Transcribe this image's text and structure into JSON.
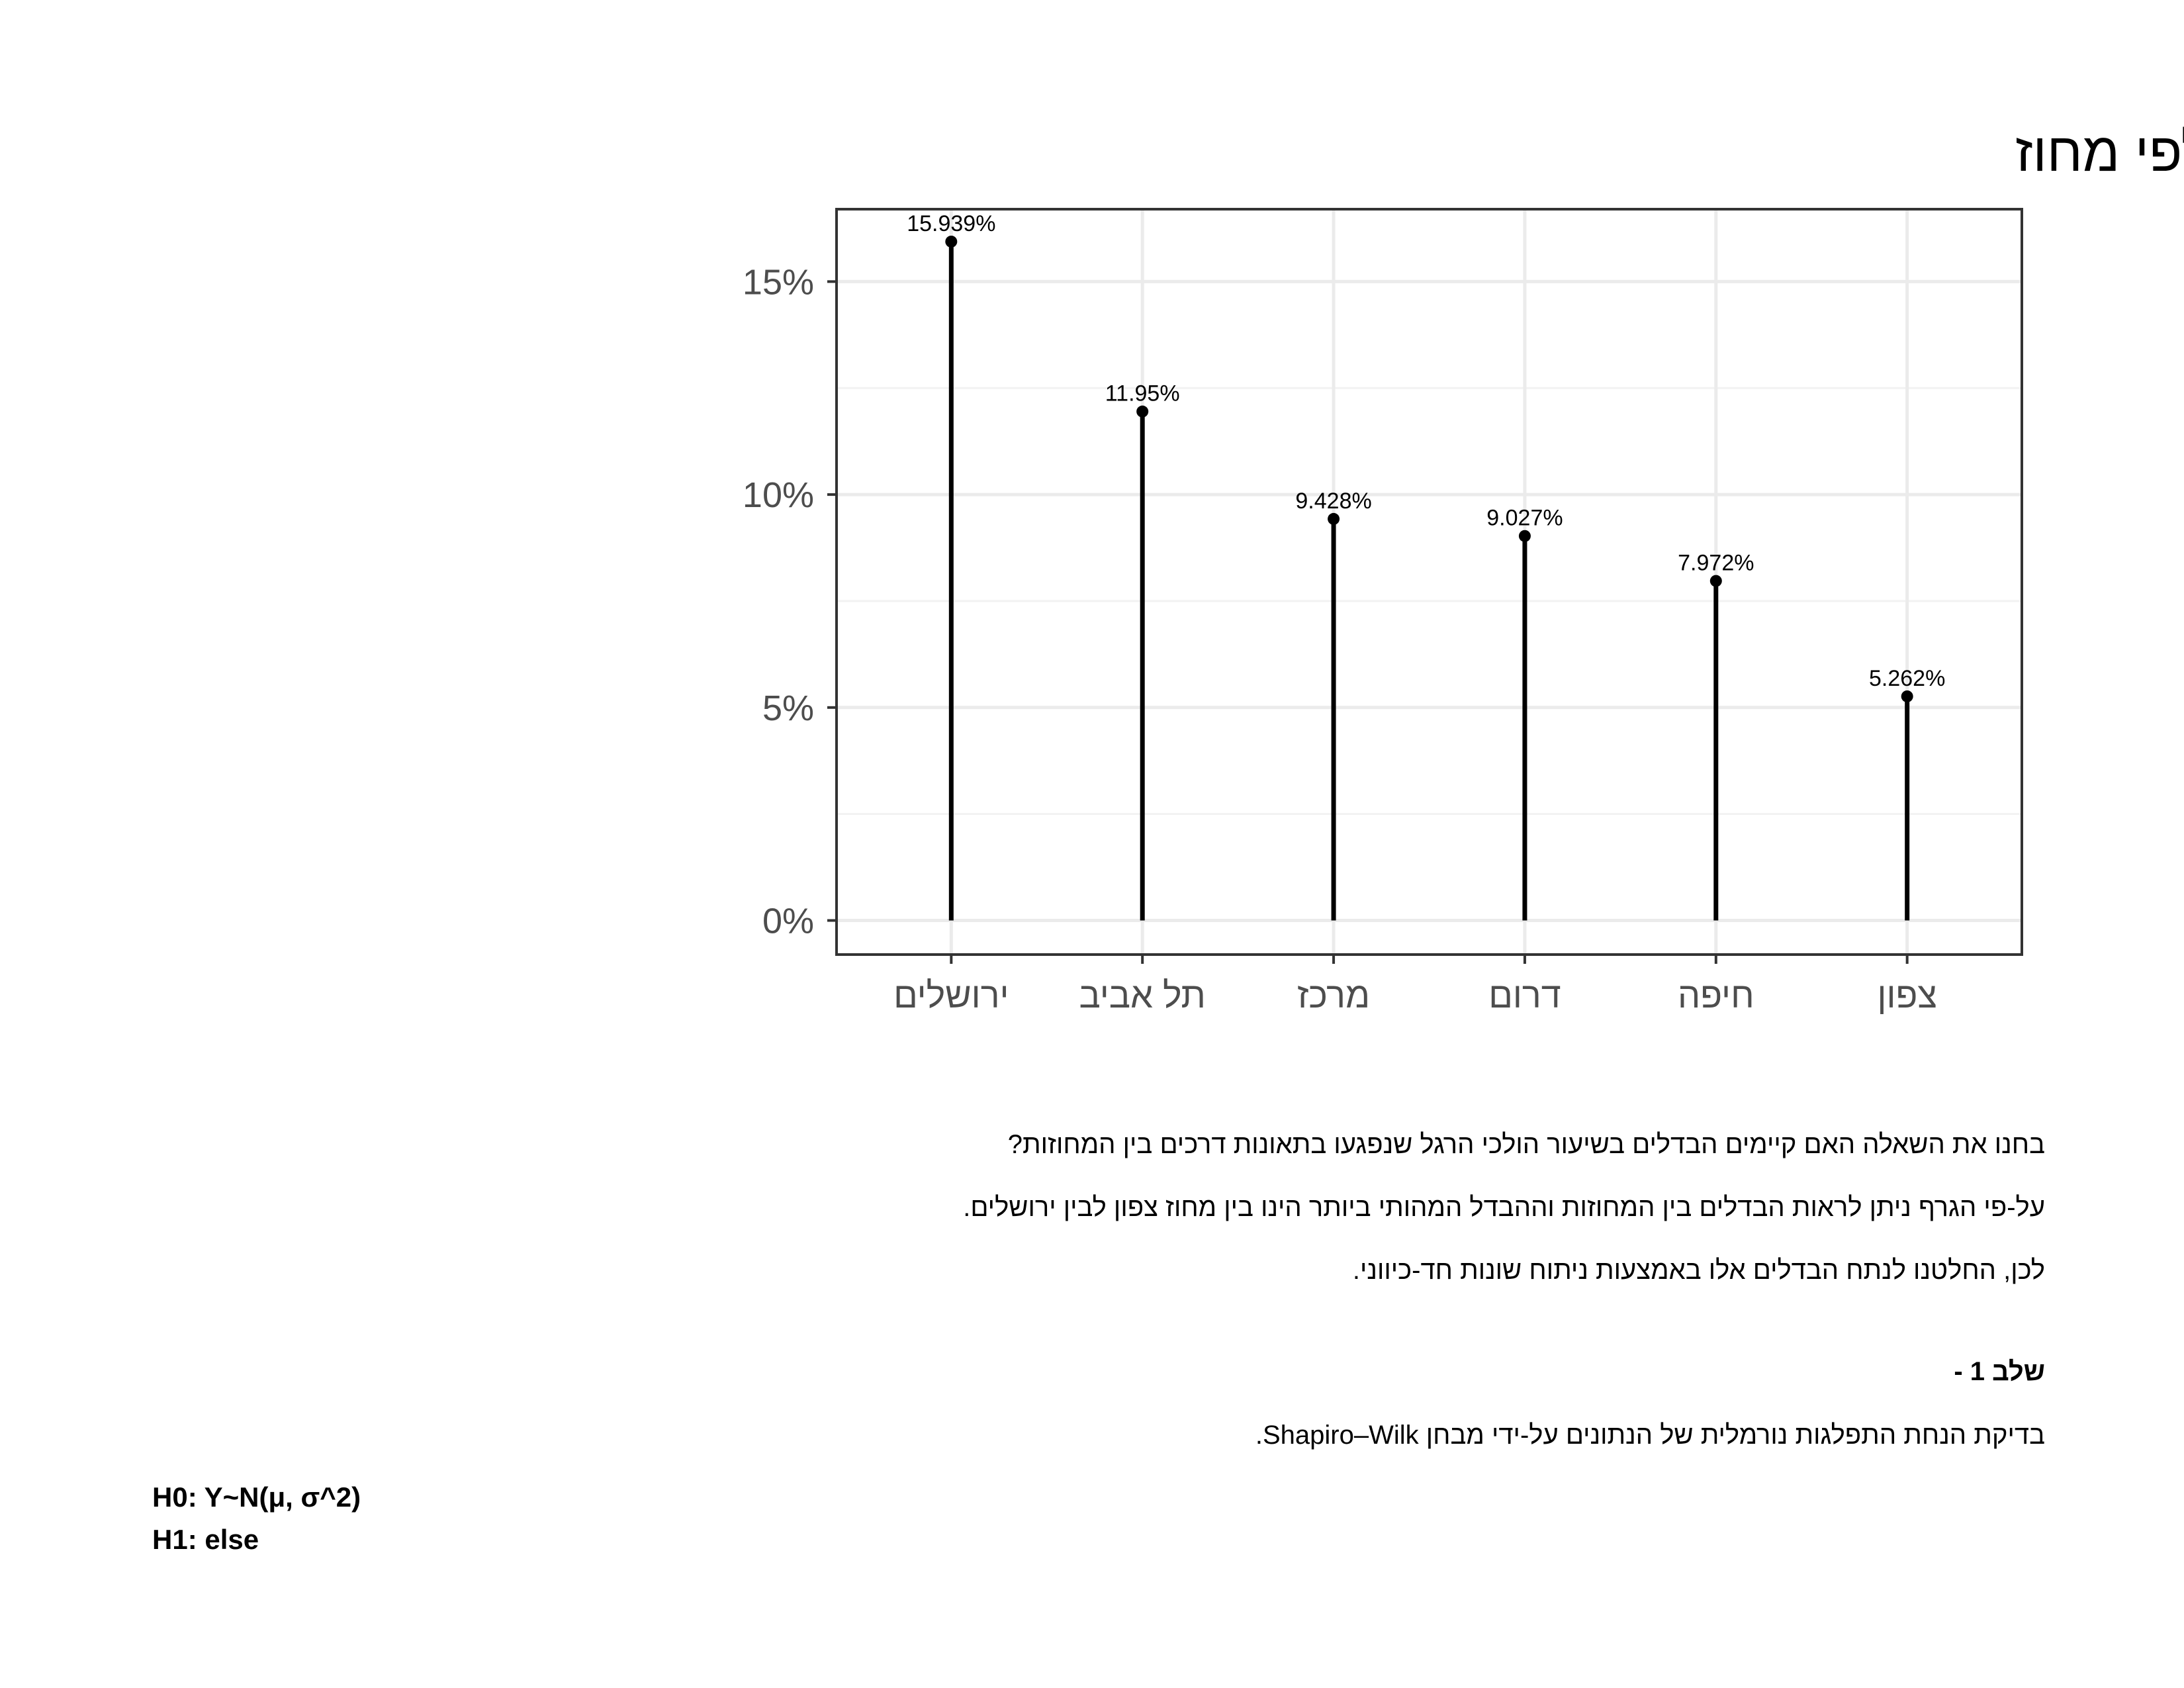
{
  "chart_data": {
    "type": "lollipop",
    "title": "שיעור הולכי הרגל שנפגעו בתאונות דרכים לפי מחוז",
    "xlabel": "",
    "ylabel": "",
    "categories": [
      "ירושלים",
      "תל אביב",
      "מרכז",
      "דרום",
      "חיפה",
      "צפון"
    ],
    "values": [
      15.939,
      11.95,
      9.428,
      9.027,
      7.972,
      5.262
    ],
    "data_labels": [
      "15.939%",
      "11.95%",
      "9.428%",
      "9.027%",
      "7.972%",
      "5.262%"
    ],
    "ylim": [
      -0.8,
      16.7
    ],
    "yticks": [
      0,
      5,
      10,
      15
    ],
    "ytick_labels": [
      "0%",
      "5%",
      "10%",
      "15%"
    ],
    "grid": true,
    "colors": {
      "stem": "#000000",
      "grid_major": "#ebebeb",
      "grid_minor": "#f2f2f2",
      "panel_border": "#333333",
      "tick_text": "#4d4d4d"
    }
  },
  "text": {
    "p1": "בחנו את השאלה האם קיימים הבדלים בשיעור הולכי הרגל שנפגעו בתאונות דרכים בין המחוזות?",
    "p2": "על-פי הגרף ניתן לראות הבדלים בין המחוזות וההבדל המהותי ביותר הינו בין מחוז צפון לבין ירושלים.",
    "p3": "לכן, החלטנו לנתח הבדלים אלו באמצעות ניתוח שונות חד-כיווני.",
    "step1": "שלב 1 -",
    "p4": "בדיקת הנחת התפלגות נורמלית של הנתונים על-ידי מבחן Shapiro–Wilk.",
    "h0": "H0: Y~N(μ, σ^2)",
    "h1": "H1: else"
  }
}
